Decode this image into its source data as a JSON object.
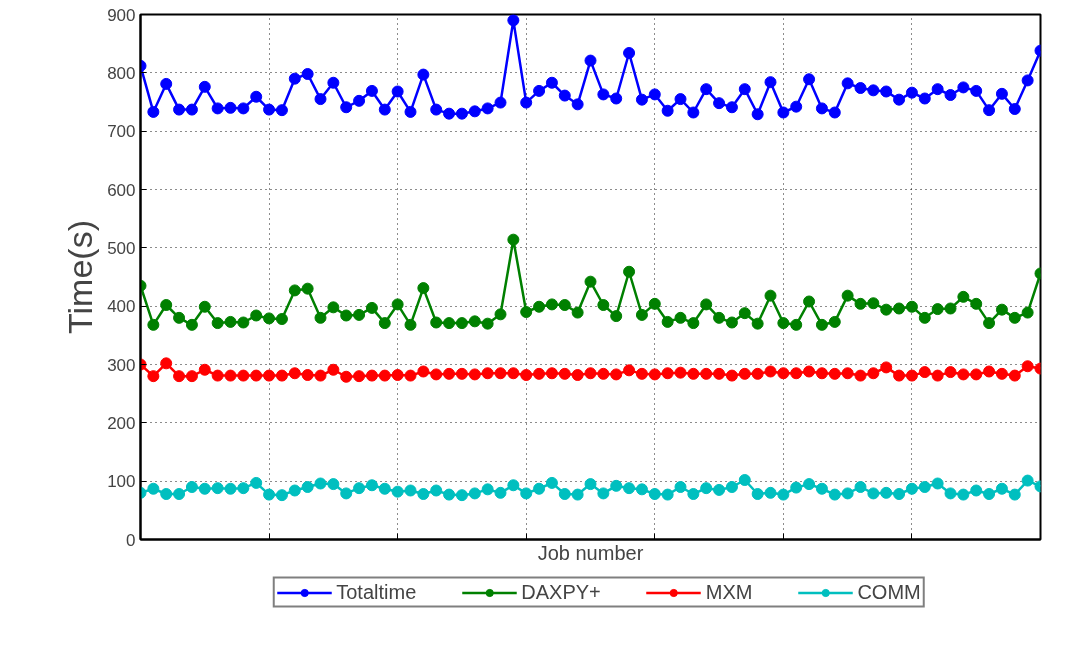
{
  "chart_data": {
    "type": "line",
    "xlabel": "Job number",
    "ylabel": "Time(s)",
    "categories": [
      null,
      null,
      null,
      null,
      null,
      null,
      null,
      null,
      null,
      null,
      null,
      null,
      null,
      null,
      null,
      null,
      null,
      null,
      null,
      null,
      null,
      null,
      null,
      null,
      null,
      null,
      null,
      null,
      null,
      null,
      null,
      null,
      null,
      null,
      null,
      null,
      null,
      null,
      null,
      null,
      null,
      null,
      null,
      null,
      null,
      null,
      null,
      null,
      null,
      null,
      null,
      null,
      null,
      null,
      null,
      null,
      null,
      null,
      null,
      null,
      null,
      null,
      null,
      null,
      null,
      null,
      null,
      null,
      null,
      null,
      null
    ],
    "ylim": [
      0,
      900
    ],
    "yticks": [
      0,
      100,
      200,
      300,
      400,
      500,
      600,
      700,
      800,
      900
    ],
    "tick_labels": "y",
    "grid": true,
    "legend": "bottom",
    "marker": "circle",
    "line_style": "solid",
    "series": [
      {
        "name": "Totaltime",
        "color": "#0000ff",
        "values": [
          812,
          733,
          781,
          737,
          737,
          776,
          739,
          740,
          739,
          759,
          737,
          736,
          790,
          798,
          755,
          783,
          741,
          752,
          769,
          737,
          768,
          733,
          797,
          737,
          730,
          730,
          734,
          739,
          749,
          890,
          749,
          769,
          783,
          761,
          746,
          821,
          763,
          756,
          834,
          754,
          763,
          735,
          755,
          732,
          772,
          748,
          741,
          772,
          729,
          784,
          732,
          742,
          789,
          739,
          732,
          782,
          774,
          770,
          768,
          754,
          766,
          756,
          772,
          762,
          775,
          769,
          736,
          764,
          738,
          787,
          838
        ]
      },
      {
        "name": "DAXPY+",
        "color": "#008000",
        "values": [
          435,
          368,
          402,
          380,
          368,
          399,
          371,
          373,
          372,
          384,
          379,
          378,
          427,
          430,
          380,
          398,
          384,
          385,
          397,
          371,
          403,
          368,
          431,
          372,
          371,
          371,
          374,
          370,
          386,
          514,
          390,
          399,
          403,
          402,
          389,
          442,
          402,
          383,
          459,
          385,
          404,
          373,
          380,
          371,
          403,
          380,
          372,
          388,
          370,
          418,
          371,
          368,
          408,
          368,
          373,
          418,
          404,
          405,
          394,
          396,
          399,
          380,
          395,
          396,
          416,
          404,
          371,
          394,
          380,
          389,
          456
        ]
      },
      {
        "name": "MXM",
        "color": "#ff0000",
        "values": [
          300,
          280,
          302,
          280,
          280,
          291,
          281,
          281,
          281,
          281,
          281,
          281,
          285,
          282,
          281,
          291,
          279,
          280,
          281,
          281,
          282,
          281,
          288,
          283,
          284,
          284,
          283,
          285,
          285,
          285,
          282,
          284,
          285,
          284,
          282,
          285,
          284,
          283,
          290,
          284,
          283,
          285,
          286,
          284,
          284,
          284,
          281,
          284,
          284,
          288,
          285,
          285,
          288,
          285,
          284,
          285,
          281,
          285,
          295,
          281,
          281,
          287,
          281,
          287,
          283,
          283,
          288,
          284,
          281,
          297,
          293
        ]
      },
      {
        "name": "COMM",
        "color": "#00bfbf",
        "values": [
          80,
          87,
          78,
          78,
          90,
          87,
          88,
          87,
          88,
          97,
          77,
          76,
          84,
          90,
          96,
          95,
          79,
          88,
          93,
          87,
          82,
          84,
          78,
          84,
          77,
          76,
          79,
          86,
          80,
          93,
          79,
          87,
          97,
          78,
          77,
          95,
          79,
          92,
          88,
          86,
          78,
          77,
          90,
          78,
          88,
          85,
          90,
          102,
          78,
          80,
          77,
          89,
          95,
          87,
          77,
          79,
          90,
          79,
          80,
          78,
          87,
          90,
          96,
          79,
          77,
          84,
          78,
          87,
          77,
          101,
          91
        ]
      }
    ]
  }
}
